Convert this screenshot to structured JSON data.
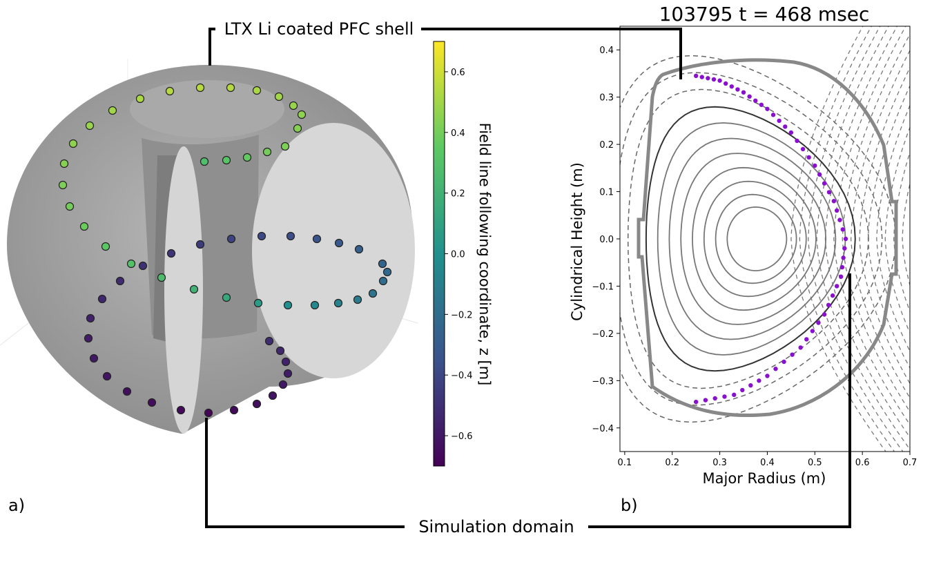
{
  "annotations": {
    "shell_label": "LTX Li coated PFC shell",
    "domain_label": "Simulation domain",
    "panel_a": "a)",
    "panel_b": "b)"
  },
  "colorbar": {
    "label": "Field line following coordinate, z [m]",
    "ticks": [
      "0.6",
      "0.4",
      "0.2",
      "0.0",
      "−0.2",
      "−0.4",
      "−0.6"
    ],
    "colormap": "viridis",
    "range": [
      -0.7,
      0.7
    ]
  },
  "chart_data": [
    {
      "type": "scatter",
      "panel": "a",
      "description_3d": "helical field line trajectory over a cut-away toroidal shell",
      "z_range": [
        -0.7,
        0.7
      ]
    },
    {
      "type": "line",
      "panel": "b",
      "title": "103795 t = 468 msec",
      "xlabel": "Major Radius (m)",
      "ylabel": "Cylindrical Height (m)",
      "xlim": [
        0.09,
        0.7
      ],
      "ylim": [
        -0.45,
        0.45
      ],
      "xticks": [
        "0.1",
        "0.2",
        "0.3",
        "0.4",
        "0.5",
        "0.6",
        "0.7"
      ],
      "yticks": [
        "0.4",
        "0.3",
        "0.2",
        "0.1",
        "0.0",
        "−0.1",
        "−0.2",
        "−0.3",
        "−0.4"
      ],
      "magnetic_axis": {
        "r": 0.38,
        "z": 0.0
      },
      "closed_flux_surfaces": 8,
      "open_field_lines": "dashed",
      "field_line_point_color": "#8a10d0",
      "wall_color": "#888888",
      "field_line_points": [
        {
          "r": 0.25,
          "z": 0.345
        },
        {
          "r": 0.3,
          "z": 0.335
        },
        {
          "r": 0.35,
          "z": 0.31
        },
        {
          "r": 0.4,
          "z": 0.275
        },
        {
          "r": 0.45,
          "z": 0.225
        },
        {
          "r": 0.5,
          "z": 0.155
        },
        {
          "r": 0.54,
          "z": 0.08
        },
        {
          "r": 0.565,
          "z": 0.0
        },
        {
          "r": 0.555,
          "z": -0.08
        },
        {
          "r": 0.52,
          "z": -0.16
        },
        {
          "r": 0.47,
          "z": -0.23
        },
        {
          "r": 0.4,
          "z": -0.29
        },
        {
          "r": 0.33,
          "z": -0.33
        },
        {
          "r": 0.25,
          "z": -0.345
        }
      ]
    }
  ]
}
